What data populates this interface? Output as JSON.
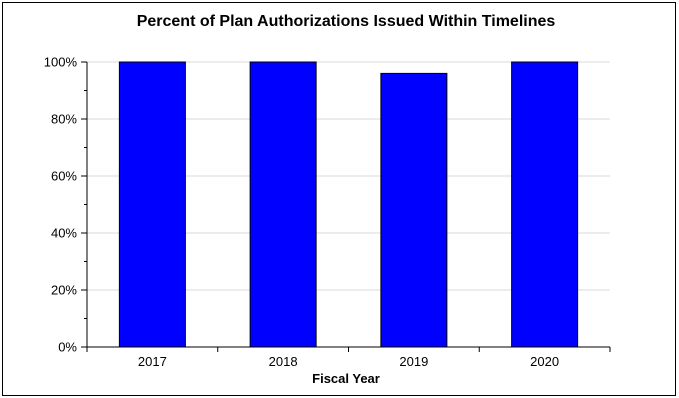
{
  "chart_data": {
    "type": "bar",
    "title": "Percent of Plan Authorizations Issued Within Timelines",
    "xlabel": "Fiscal Year",
    "ylabel": "",
    "categories": [
      "2017",
      "2018",
      "2019",
      "2020"
    ],
    "values": [
      100,
      100,
      96,
      100
    ],
    "ylim": [
      0,
      100
    ],
    "yticks": [
      0,
      20,
      40,
      60,
      80,
      100
    ],
    "ytick_labels": [
      "0%",
      "20%",
      "40%",
      "60%",
      "80%",
      "100%"
    ],
    "grid": true,
    "legend": "none",
    "bar_color": "#0000ff",
    "bar_edge_color": "#000000",
    "grid_color": "#d9d9d9"
  }
}
